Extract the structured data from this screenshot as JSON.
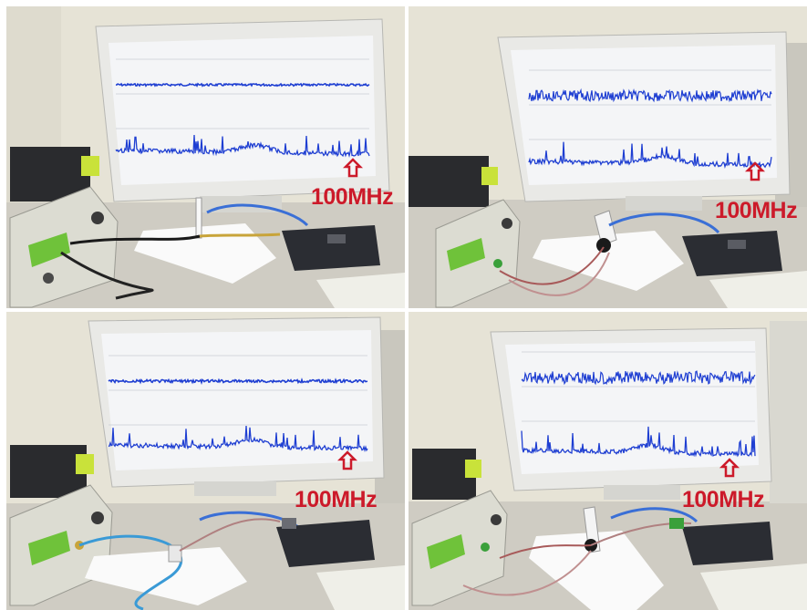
{
  "panels": [
    {
      "id": "top-left",
      "marker_label": "100MHz",
      "upper_trace": "flat",
      "lower_trace": "noisy",
      "probe_cable": "black-coax"
    },
    {
      "id": "top-right",
      "marker_label": "100MHz",
      "upper_trace": "dense",
      "lower_trace": "noisy",
      "probe_cable": "red-twisted"
    },
    {
      "id": "bottom-left",
      "marker_label": "100MHz",
      "upper_trace": "flat",
      "lower_trace": "noisy",
      "probe_cable": "blue-coax"
    },
    {
      "id": "bottom-right",
      "marker_label": "100MHz",
      "upper_trace": "dense",
      "lower_trace": "noisy",
      "probe_cable": "red-twisted"
    }
  ],
  "colors": {
    "wall": "#e6e3d6",
    "desk": "#cfccc3",
    "monitor_bezel": "#e9e9e6",
    "screen": "#f4f5f7",
    "trace": "#1f3fd2",
    "label": "#cc1a2a",
    "generator_body": "#dcdcd2",
    "generator_display": "#6fc23a",
    "usb_scope": "#2b2d33",
    "cloth": "#fafafa"
  }
}
